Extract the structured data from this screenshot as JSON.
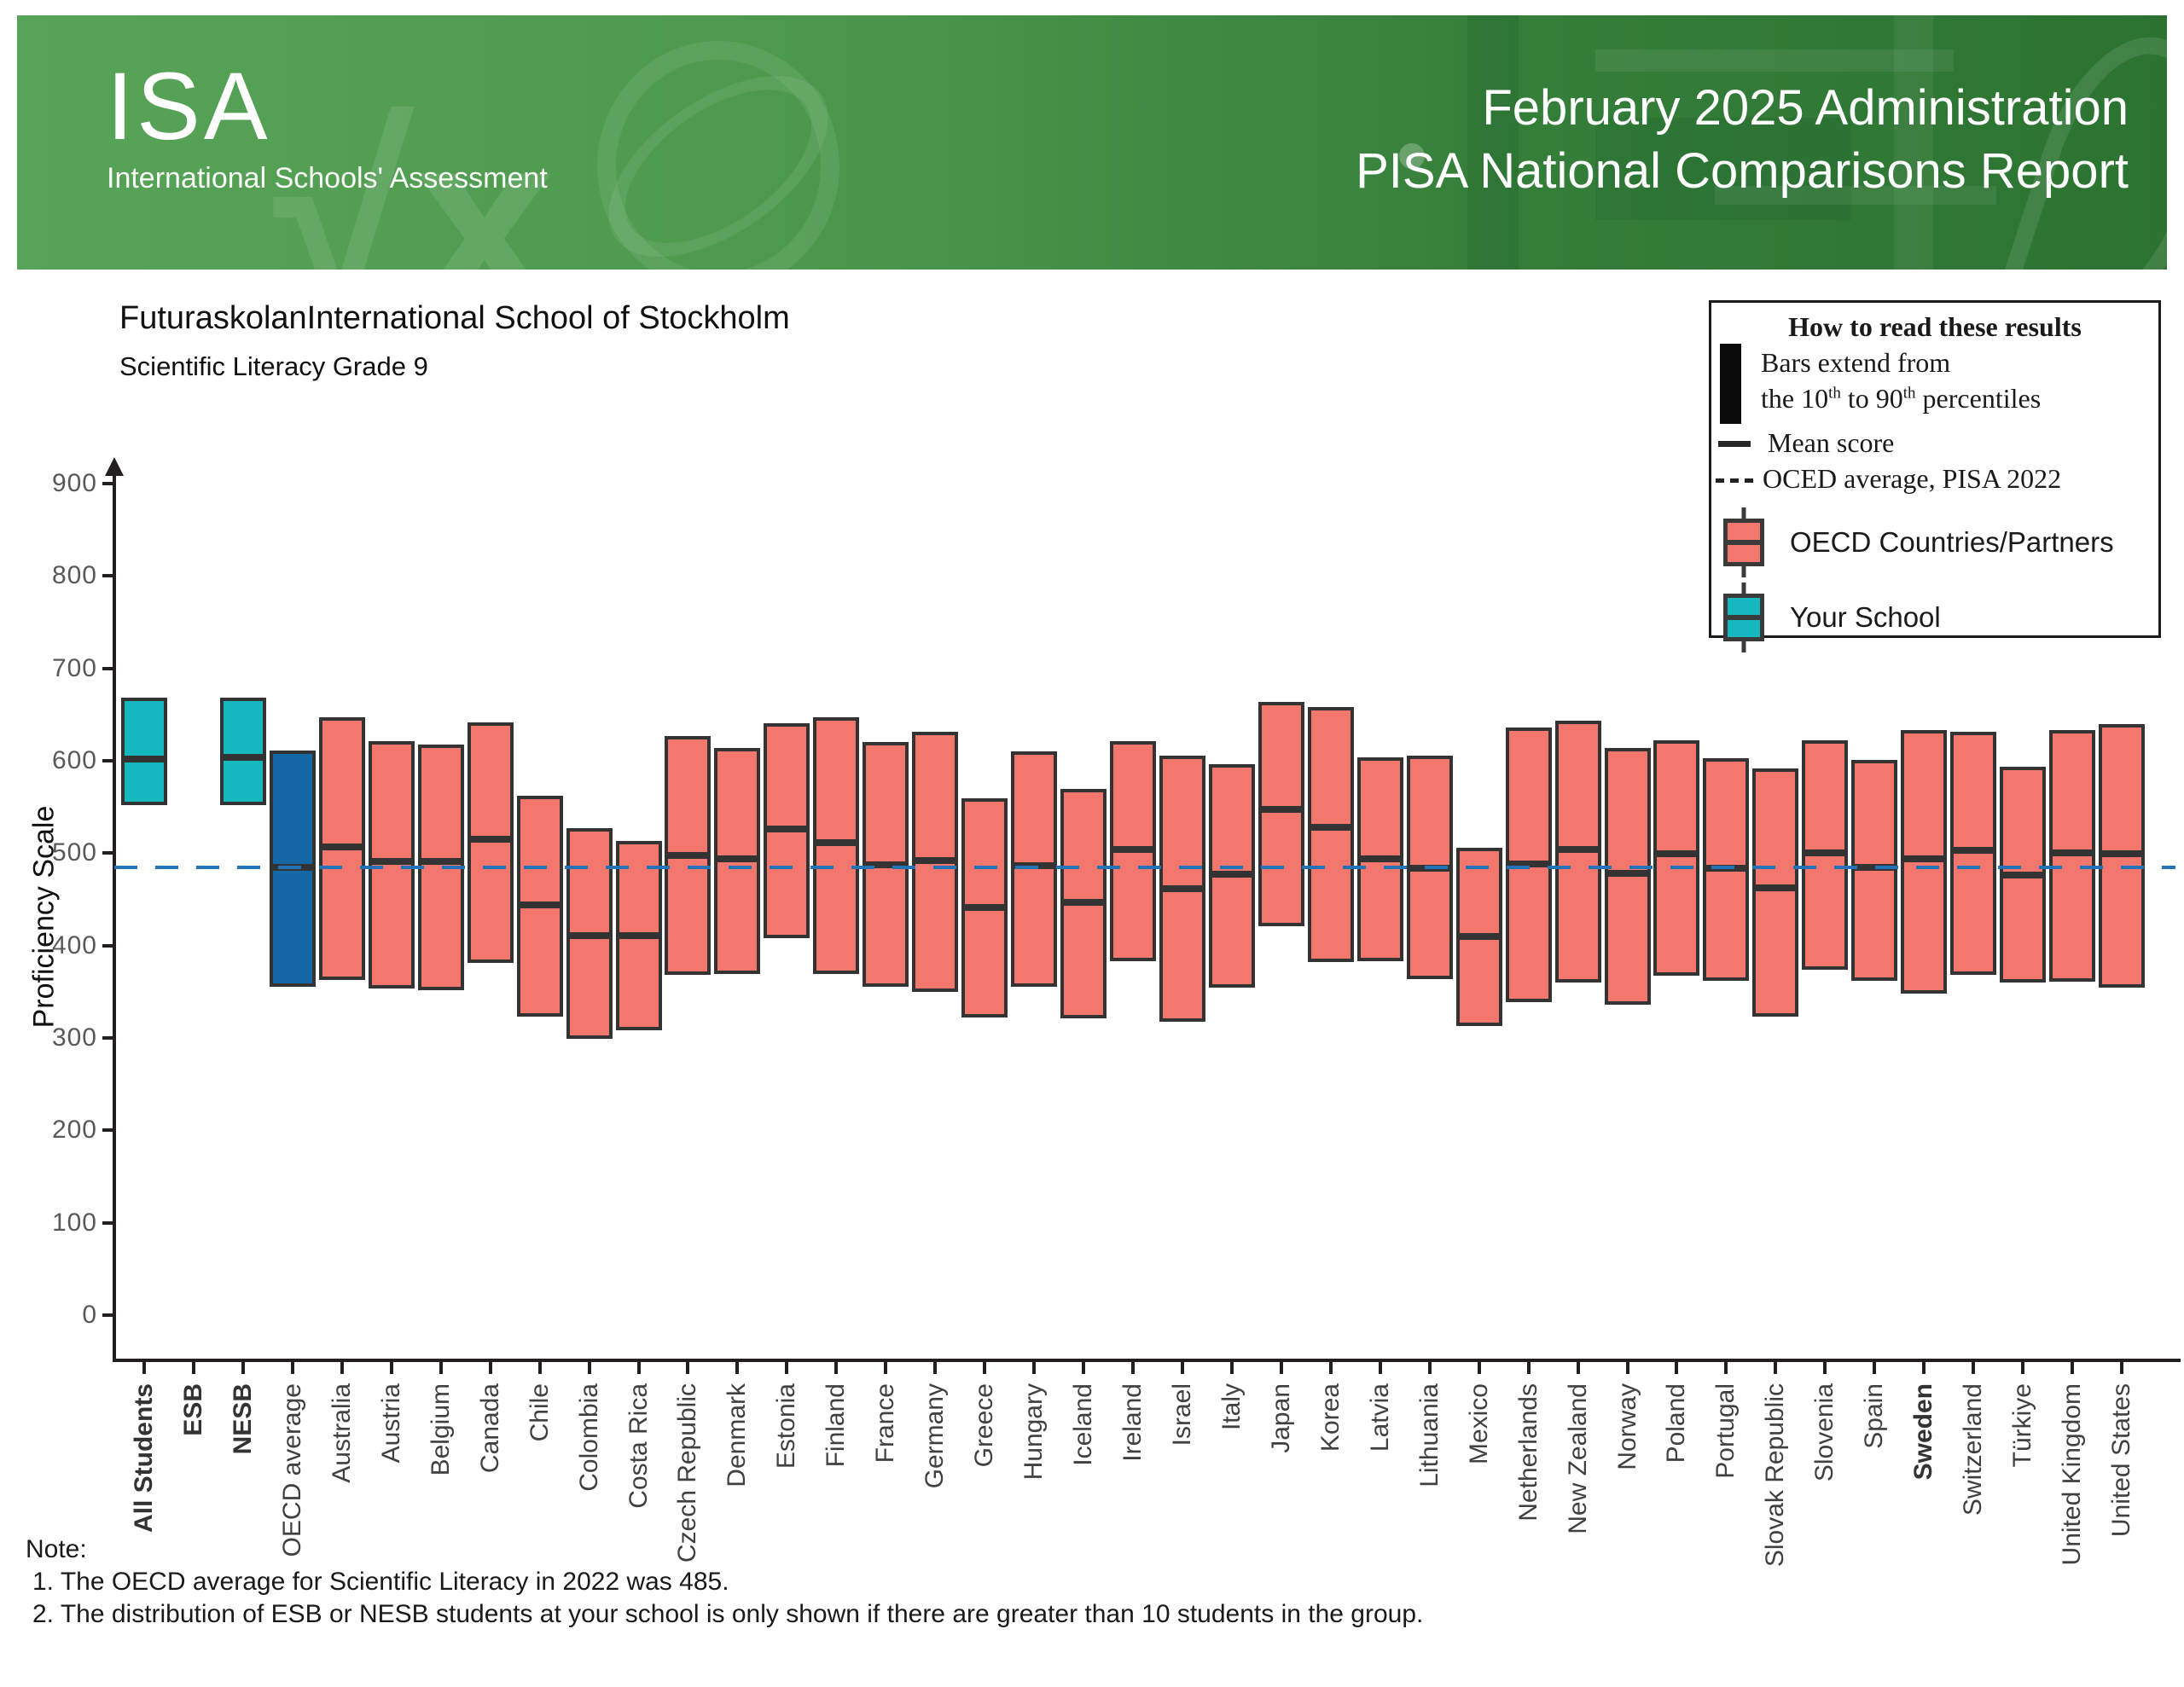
{
  "header": {
    "logo_title": "ISA",
    "logo_subtitle": "International Schools' Assessment",
    "line1": "February 2025 Administration",
    "line2": "PISA National Comparisons Report"
  },
  "titles": {
    "school": "FuturaskolanInternational School of Stockholm",
    "subtitle": "Scientific Literacy Grade 9"
  },
  "legend": {
    "title": "How to read these results",
    "bars_line1": "Bars extend from",
    "percentile_line": {
      "pre": "the 10",
      "sup1": "th",
      "mid": " to 90",
      "sup2": "th",
      "post": " percentiles"
    },
    "mean_label": "Mean score",
    "oecd_avg_label": "OCED average, PISA 2022",
    "countries_label": "OECD Countries/Partners",
    "school_label": "Your School"
  },
  "notes": {
    "label": "Note:",
    "line1": "1. The OECD average for Scientific Literacy in 2022 was 485.",
    "line2": "2. The distribution of ESB or NESB students at your school is only shown if there are greater than 10 students in the group."
  },
  "colors": {
    "country_bar": "#f4776e",
    "school_bar": "#14b8be",
    "oecd_bar": "#1468a6",
    "bar_border": "#333333",
    "mean_line": "#333333",
    "oecd_dash": "#2273b8",
    "axis": "#231f20",
    "y_tick_label": "#58595b",
    "x_label": "#404040"
  },
  "chart_data": {
    "type": "bar",
    "title": "FuturaskolanInternational School of Stockholm",
    "subtitle": "Scientific Literacy Grade 9",
    "ylabel": "Proficiency Scale",
    "ylim": [
      0,
      975
    ],
    "y_ticks": [
      0,
      100,
      200,
      300,
      400,
      500,
      600,
      700,
      800,
      900
    ],
    "grid": false,
    "legend_position": "top-right",
    "bar_meaning": "bars span 10th to 90th percentiles; inner dark line is the mean score",
    "reference_line": {
      "label": "OECD average, PISA 2022",
      "value": 485
    },
    "bars": [
      {
        "label": "All Students",
        "p10": 552,
        "mean": 602,
        "p90": 668,
        "group": "school",
        "bold": true
      },
      {
        "label": "ESB",
        "p10": null,
        "mean": null,
        "p90": null,
        "group": "school",
        "bold": true
      },
      {
        "label": "NESB",
        "p10": 552,
        "mean": 604,
        "p90": 668,
        "group": "school",
        "bold": true
      },
      {
        "label": "OECD average",
        "p10": 355,
        "mean": 485,
        "p90": 611,
        "group": "oecd_average",
        "bold": false
      },
      {
        "label": "Australia",
        "p10": 363,
        "mean": 507,
        "p90": 647,
        "group": "country",
        "bold": false
      },
      {
        "label": "Austria",
        "p10": 354,
        "mean": 491,
        "p90": 621,
        "group": "country",
        "bold": false
      },
      {
        "label": "Belgium",
        "p10": 352,
        "mean": 491,
        "p90": 618,
        "group": "country",
        "bold": false
      },
      {
        "label": "Canada",
        "p10": 381,
        "mean": 515,
        "p90": 642,
        "group": "country",
        "bold": false
      },
      {
        "label": "Chile",
        "p10": 323,
        "mean": 444,
        "p90": 562,
        "group": "country",
        "bold": false
      },
      {
        "label": "Colombia",
        "p10": 299,
        "mean": 411,
        "p90": 527,
        "group": "country",
        "bold": false
      },
      {
        "label": "Costa Rica",
        "p10": 308,
        "mean": 411,
        "p90": 513,
        "group": "country",
        "bold": false
      },
      {
        "label": "Czech Republic",
        "p10": 368,
        "mean": 498,
        "p90": 627,
        "group": "country",
        "bold": false
      },
      {
        "label": "Denmark",
        "p10": 369,
        "mean": 494,
        "p90": 614,
        "group": "country",
        "bold": false
      },
      {
        "label": "Estonia",
        "p10": 408,
        "mean": 526,
        "p90": 641,
        "group": "country",
        "bold": false
      },
      {
        "label": "Finland",
        "p10": 369,
        "mean": 511,
        "p90": 647,
        "group": "country",
        "bold": false
      },
      {
        "label": "France",
        "p10": 355,
        "mean": 487,
        "p90": 620,
        "group": "country",
        "bold": false
      },
      {
        "label": "Germany",
        "p10": 350,
        "mean": 492,
        "p90": 631,
        "group": "country",
        "bold": false
      },
      {
        "label": "Greece",
        "p10": 322,
        "mean": 441,
        "p90": 559,
        "group": "country",
        "bold": false
      },
      {
        "label": "Hungary",
        "p10": 355,
        "mean": 486,
        "p90": 610,
        "group": "country",
        "bold": false
      },
      {
        "label": "Iceland",
        "p10": 321,
        "mean": 447,
        "p90": 570,
        "group": "country",
        "bold": false
      },
      {
        "label": "Ireland",
        "p10": 383,
        "mean": 504,
        "p90": 621,
        "group": "country",
        "bold": false
      },
      {
        "label": "Israel",
        "p10": 318,
        "mean": 462,
        "p90": 606,
        "group": "country",
        "bold": false
      },
      {
        "label": "Italy",
        "p10": 354,
        "mean": 477,
        "p90": 596,
        "group": "country",
        "bold": false
      },
      {
        "label": "Japan",
        "p10": 421,
        "mean": 547,
        "p90": 664,
        "group": "country",
        "bold": false
      },
      {
        "label": "Korea",
        "p10": 382,
        "mean": 528,
        "p90": 658,
        "group": "country",
        "bold": false
      },
      {
        "label": "Latvia",
        "p10": 383,
        "mean": 494,
        "p90": 604,
        "group": "country",
        "bold": false
      },
      {
        "label": "Lithuania",
        "p10": 364,
        "mean": 484,
        "p90": 606,
        "group": "country",
        "bold": false
      },
      {
        "label": "Mexico",
        "p10": 313,
        "mean": 410,
        "p90": 506,
        "group": "country",
        "bold": false
      },
      {
        "label": "Netherlands",
        "p10": 339,
        "mean": 488,
        "p90": 636,
        "group": "country",
        "bold": false
      },
      {
        "label": "New Zealand",
        "p10": 360,
        "mean": 504,
        "p90": 643,
        "group": "country",
        "bold": false
      },
      {
        "label": "Norway",
        "p10": 336,
        "mean": 478,
        "p90": 614,
        "group": "country",
        "bold": false
      },
      {
        "label": "Poland",
        "p10": 367,
        "mean": 499,
        "p90": 622,
        "group": "country",
        "bold": false
      },
      {
        "label": "Portugal",
        "p10": 362,
        "mean": 484,
        "p90": 603,
        "group": "country",
        "bold": false
      },
      {
        "label": "Slovak Republic",
        "p10": 323,
        "mean": 462,
        "p90": 592,
        "group": "country",
        "bold": false
      },
      {
        "label": "Slovenia",
        "p10": 374,
        "mean": 500,
        "p90": 622,
        "group": "country",
        "bold": false
      },
      {
        "label": "Spain",
        "p10": 362,
        "mean": 485,
        "p90": 601,
        "group": "country",
        "bold": false
      },
      {
        "label": "Sweden",
        "p10": 348,
        "mean": 494,
        "p90": 633,
        "group": "country",
        "bold": true
      },
      {
        "label": "Switzerland",
        "p10": 368,
        "mean": 503,
        "p90": 631,
        "group": "country",
        "bold": false
      },
      {
        "label": "Türkiye",
        "p10": 360,
        "mean": 476,
        "p90": 594,
        "group": "country",
        "bold": false
      },
      {
        "label": "United Kingdom",
        "p10": 361,
        "mean": 500,
        "p90": 633,
        "group": "country",
        "bold": false
      },
      {
        "label": "United States",
        "p10": 354,
        "mean": 499,
        "p90": 640,
        "group": "country",
        "bold": false
      }
    ]
  }
}
